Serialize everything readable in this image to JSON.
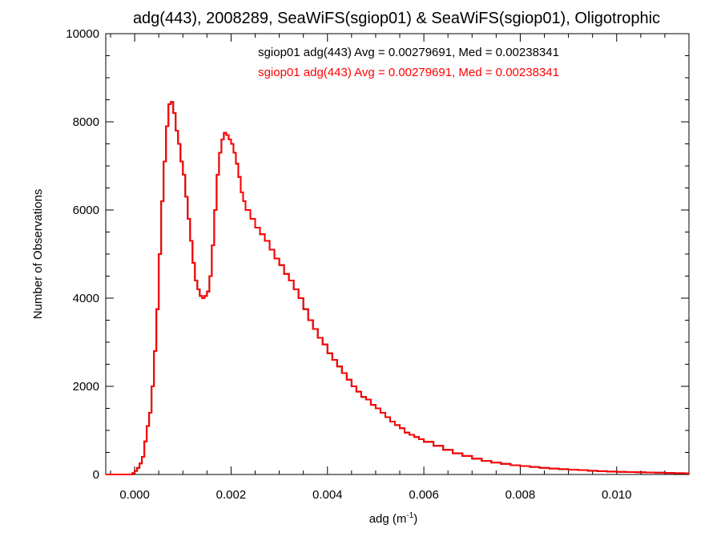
{
  "chart_data": {
    "type": "line",
    "title": "adg(443), 2008289, SeaWiFS(sgiop01) & SeaWiFS(sgiop01), Oligotrophic",
    "xlabel_main": "adg (m",
    "xlabel_sup": "-1",
    "xlabel_close": ")",
    "ylabel": "Number of Observations",
    "xlim": [
      -0.0006,
      0.0115
    ],
    "ylim": [
      0,
      10000
    ],
    "x_ticks": [
      0.0,
      0.002,
      0.004,
      0.006,
      0.008,
      0.01
    ],
    "x_tick_labels": [
      "0.000",
      "0.002",
      "0.004",
      "0.006",
      "0.008",
      "0.010"
    ],
    "y_ticks": [
      0,
      2000,
      4000,
      6000,
      8000,
      10000
    ],
    "y_tick_labels": [
      "0",
      "2000",
      "4000",
      "6000",
      "8000",
      "10000"
    ],
    "grid": false,
    "annotations": [
      {
        "text": "sgiop01 adg(443) Avg = 0.00279691, Med = 0.00238341",
        "color": "#000000"
      },
      {
        "text": "sgiop01 adg(443) Avg = 0.00279691, Med = 0.00238341",
        "color": "#ff0000"
      }
    ],
    "series": [
      {
        "color": "#000000",
        "style": "steps",
        "x": [
          -0.0006,
          -0.0002,
          -5e-05,
          0.0,
          5e-05,
          0.0001,
          0.00015,
          0.0002,
          0.00025,
          0.0003,
          0.00035,
          0.0004,
          0.00045,
          0.0005,
          0.00055,
          0.0006,
          0.00065,
          0.0007,
          0.00075,
          0.0008,
          0.00085,
          0.0009,
          0.00095,
          0.001,
          0.00105,
          0.0011,
          0.00115,
          0.0012,
          0.00125,
          0.0013,
          0.00135,
          0.0014,
          0.00145,
          0.0015,
          0.00155,
          0.0016,
          0.00165,
          0.0017,
          0.00175,
          0.0018,
          0.00185,
          0.0019,
          0.00195,
          0.002,
          0.00205,
          0.0021,
          0.00215,
          0.0022,
          0.00225,
          0.0023,
          0.0024,
          0.0025,
          0.0026,
          0.0027,
          0.0028,
          0.0029,
          0.003,
          0.0031,
          0.0032,
          0.0033,
          0.0034,
          0.0035,
          0.0036,
          0.0037,
          0.0038,
          0.0039,
          0.004,
          0.0041,
          0.0042,
          0.0043,
          0.0044,
          0.0045,
          0.0046,
          0.0047,
          0.0048,
          0.0049,
          0.005,
          0.0051,
          0.0052,
          0.0053,
          0.0054,
          0.0055,
          0.0056,
          0.0057,
          0.0058,
          0.0059,
          0.006,
          0.0062,
          0.0064,
          0.0066,
          0.0068,
          0.007,
          0.0072,
          0.0074,
          0.0076,
          0.0078,
          0.008,
          0.0082,
          0.0084,
          0.0086,
          0.0088,
          0.009,
          0.0092,
          0.0094,
          0.0096,
          0.0098,
          0.01,
          0.0102,
          0.0104,
          0.0106,
          0.0108,
          0.011,
          0.0112,
          0.0114
        ],
        "y": [
          0,
          0,
          30,
          80,
          150,
          250,
          400,
          750,
          1100,
          1400,
          2000,
          2800,
          3750,
          5000,
          6200,
          7100,
          7900,
          8400,
          8450,
          8200,
          7800,
          7500,
          7100,
          6800,
          6300,
          5800,
          5300,
          4800,
          4400,
          4200,
          4050,
          4000,
          4050,
          4150,
          4500,
          5200,
          6000,
          6800,
          7300,
          7600,
          7750,
          7700,
          7600,
          7500,
          7300,
          7050,
          6750,
          6400,
          6200,
          6000,
          5800,
          5600,
          5450,
          5300,
          5100,
          4900,
          4750,
          4550,
          4400,
          4200,
          4000,
          3750,
          3500,
          3300,
          3100,
          2950,
          2750,
          2600,
          2450,
          2300,
          2150,
          2000,
          1880,
          1760,
          1700,
          1580,
          1500,
          1400,
          1300,
          1200,
          1120,
          1050,
          950,
          900,
          850,
          800,
          740,
          650,
          560,
          480,
          420,
          360,
          310,
          270,
          240,
          210,
          190,
          170,
          150,
          135,
          120,
          110,
          100,
          85,
          75,
          65,
          60,
          55,
          50,
          45,
          40,
          35,
          30,
          25
        ]
      },
      {
        "color": "#ff0000",
        "style": "steps",
        "x": [
          -0.0006,
          -0.0002,
          -5e-05,
          0.0,
          5e-05,
          0.0001,
          0.00015,
          0.0002,
          0.00025,
          0.0003,
          0.00035,
          0.0004,
          0.00045,
          0.0005,
          0.00055,
          0.0006,
          0.00065,
          0.0007,
          0.00075,
          0.0008,
          0.00085,
          0.0009,
          0.00095,
          0.001,
          0.00105,
          0.0011,
          0.00115,
          0.0012,
          0.00125,
          0.0013,
          0.00135,
          0.0014,
          0.00145,
          0.0015,
          0.00155,
          0.0016,
          0.00165,
          0.0017,
          0.00175,
          0.0018,
          0.00185,
          0.0019,
          0.00195,
          0.002,
          0.00205,
          0.0021,
          0.00215,
          0.0022,
          0.00225,
          0.0023,
          0.0024,
          0.0025,
          0.0026,
          0.0027,
          0.0028,
          0.0029,
          0.003,
          0.0031,
          0.0032,
          0.0033,
          0.0034,
          0.0035,
          0.0036,
          0.0037,
          0.0038,
          0.0039,
          0.004,
          0.0041,
          0.0042,
          0.0043,
          0.0044,
          0.0045,
          0.0046,
          0.0047,
          0.0048,
          0.0049,
          0.005,
          0.0051,
          0.0052,
          0.0053,
          0.0054,
          0.0055,
          0.0056,
          0.0057,
          0.0058,
          0.0059,
          0.006,
          0.0062,
          0.0064,
          0.0066,
          0.0068,
          0.007,
          0.0072,
          0.0074,
          0.0076,
          0.0078,
          0.008,
          0.0082,
          0.0084,
          0.0086,
          0.0088,
          0.009,
          0.0092,
          0.0094,
          0.0096,
          0.0098,
          0.01,
          0.0102,
          0.0104,
          0.0106,
          0.0108,
          0.011,
          0.0112,
          0.0114
        ],
        "y": [
          0,
          0,
          30,
          80,
          150,
          250,
          400,
          750,
          1100,
          1400,
          2000,
          2800,
          3750,
          5000,
          6200,
          7100,
          7900,
          8400,
          8450,
          8200,
          7800,
          7500,
          7100,
          6800,
          6300,
          5800,
          5300,
          4800,
          4400,
          4200,
          4050,
          4000,
          4050,
          4150,
          4500,
          5200,
          6000,
          6800,
          7300,
          7600,
          7750,
          7700,
          7600,
          7500,
          7300,
          7050,
          6750,
          6400,
          6200,
          6000,
          5800,
          5600,
          5450,
          5300,
          5100,
          4900,
          4750,
          4550,
          4400,
          4200,
          4000,
          3750,
          3500,
          3300,
          3100,
          2950,
          2750,
          2600,
          2450,
          2300,
          2150,
          2000,
          1880,
          1760,
          1700,
          1580,
          1500,
          1400,
          1300,
          1200,
          1120,
          1050,
          950,
          900,
          850,
          800,
          740,
          650,
          560,
          480,
          420,
          360,
          310,
          270,
          240,
          210,
          190,
          170,
          150,
          135,
          120,
          110,
          100,
          85,
          75,
          65,
          60,
          55,
          50,
          45,
          40,
          35,
          30,
          25
        ]
      }
    ]
  }
}
